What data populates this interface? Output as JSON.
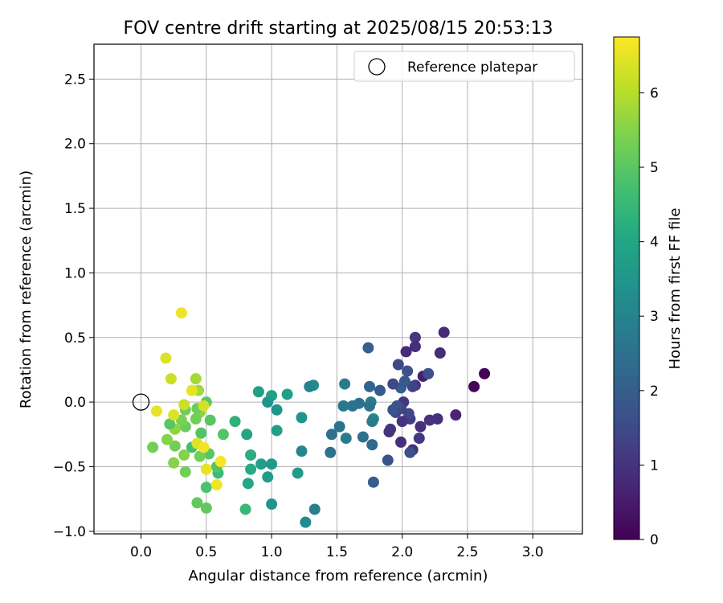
{
  "chart_data": {
    "type": "scatter",
    "title": "FOV centre drift starting at 2025/08/15 20:53:13",
    "xlabel": "Angular distance from reference (arcmin)",
    "ylabel": "Rotation from reference (arcmin)",
    "xlim": [
      -0.36,
      3.38
    ],
    "ylim": [
      -1.02,
      2.77
    ],
    "xticks": [
      0.0,
      0.5,
      1.0,
      1.5,
      2.0,
      2.5,
      3.0
    ],
    "xtick_labels": [
      "0.0",
      "0.5",
      "1.0",
      "1.5",
      "2.0",
      "2.5",
      "3.0"
    ],
    "yticks": [
      -1.0,
      -0.5,
      0.0,
      0.5,
      1.0,
      1.5,
      2.0,
      2.5
    ],
    "ytick_labels": [
      "−1.0",
      "−0.5",
      "0.0",
      "0.5",
      "1.0",
      "1.5",
      "2.0",
      "2.5"
    ],
    "grid": true,
    "colormap": "viridis",
    "colorbar": {
      "label": "Hours from first FF file",
      "range": [
        0,
        6.75
      ],
      "ticks": [
        0,
        1,
        2,
        3,
        4,
        5,
        6
      ],
      "tick_labels": [
        "0",
        "1",
        "2",
        "3",
        "4",
        "5",
        "6"
      ]
    },
    "legend": {
      "entries": [
        "Reference platepar"
      ],
      "position": "top-right"
    },
    "reference": {
      "x": 0.0,
      "y": 0.0
    },
    "points": [
      {
        "x": 2.63,
        "y": 0.22,
        "c": 0.05
      },
      {
        "x": 2.55,
        "y": 0.12,
        "c": 0.1
      },
      {
        "x": 2.41,
        "y": -0.1,
        "c": 0.7
      },
      {
        "x": 2.32,
        "y": 0.54,
        "c": 0.8
      },
      {
        "x": 2.29,
        "y": 0.38,
        "c": 0.85
      },
      {
        "x": 2.27,
        "y": -0.13,
        "c": 0.9
      },
      {
        "x": 2.21,
        "y": -0.14,
        "c": 1.0
      },
      {
        "x": 2.16,
        "y": 0.2,
        "c": 0.6
      },
      {
        "x": 2.14,
        "y": -0.19,
        "c": 0.9
      },
      {
        "x": 2.13,
        "y": -0.28,
        "c": 1.1
      },
      {
        "x": 2.1,
        "y": 0.5,
        "c": 1.1
      },
      {
        "x": 2.1,
        "y": 0.43,
        "c": 0.9
      },
      {
        "x": 2.03,
        "y": 0.39,
        "c": 0.8
      },
      {
        "x": 2.1,
        "y": 0.13,
        "c": 1.0
      },
      {
        "x": 2.08,
        "y": 0.12,
        "c": 1.3
      },
      {
        "x": 2.08,
        "y": -0.37,
        "c": 0.9
      },
      {
        "x": 2.06,
        "y": -0.39,
        "c": 1.6
      },
      {
        "x": 2.06,
        "y": -0.13,
        "c": 1.2
      },
      {
        "x": 2.05,
        "y": -0.09,
        "c": 1.4
      },
      {
        "x": 2.02,
        "y": 0.16,
        "c": 0.8
      },
      {
        "x": 2.01,
        "y": 0.0,
        "c": 1.1
      },
      {
        "x": 2.0,
        "y": -0.15,
        "c": 1.0
      },
      {
        "x": 1.99,
        "y": -0.05,
        "c": 1.3
      },
      {
        "x": 1.99,
        "y": 0.11,
        "c": 2.0
      },
      {
        "x": 1.99,
        "y": -0.31,
        "c": 0.9
      },
      {
        "x": 1.97,
        "y": 0.29,
        "c": 1.5
      },
      {
        "x": 1.96,
        "y": -0.03,
        "c": 1.8
      },
      {
        "x": 1.95,
        "y": -0.08,
        "c": 1.4
      },
      {
        "x": 1.93,
        "y": 0.14,
        "c": 1.5
      },
      {
        "x": 1.93,
        "y": -0.06,
        "c": 1.7
      },
      {
        "x": 1.91,
        "y": -0.21,
        "c": 1.1
      },
      {
        "x": 1.9,
        "y": -0.23,
        "c": 1.0
      },
      {
        "x": 1.89,
        "y": -0.45,
        "c": 1.7
      },
      {
        "x": 2.04,
        "y": 0.24,
        "c": 1.7
      },
      {
        "x": 2.02,
        "y": 0.16,
        "c": 1.9
      },
      {
        "x": 2.2,
        "y": 0.22,
        "c": 1.6
      },
      {
        "x": 1.83,
        "y": 0.09,
        "c": 1.9
      },
      {
        "x": 1.78,
        "y": -0.13,
        "c": 3.2
      },
      {
        "x": 1.78,
        "y": -0.62,
        "c": 2.0
      },
      {
        "x": 1.77,
        "y": -0.33,
        "c": 2.3
      },
      {
        "x": 1.77,
        "y": -0.15,
        "c": 2.8
      },
      {
        "x": 1.76,
        "y": 0.0,
        "c": 2.8
      },
      {
        "x": 1.75,
        "y": -0.03,
        "c": 2.5
      },
      {
        "x": 1.75,
        "y": 0.12,
        "c": 2.2
      },
      {
        "x": 1.74,
        "y": 0.42,
        "c": 2.1
      },
      {
        "x": 1.7,
        "y": -0.27,
        "c": 2.5
      },
      {
        "x": 1.67,
        "y": -0.01,
        "c": 2.5
      },
      {
        "x": 1.62,
        "y": -0.03,
        "c": 2.6
      },
      {
        "x": 1.57,
        "y": -0.28,
        "c": 2.8
      },
      {
        "x": 1.56,
        "y": 0.14,
        "c": 2.8
      },
      {
        "x": 1.55,
        "y": -0.03,
        "c": 2.7
      },
      {
        "x": 1.52,
        "y": -0.19,
        "c": 2.6
      },
      {
        "x": 1.46,
        "y": -0.25,
        "c": 2.5
      },
      {
        "x": 1.45,
        "y": -0.39,
        "c": 2.5
      },
      {
        "x": 1.33,
        "y": -0.83,
        "c": 2.9
      },
      {
        "x": 1.32,
        "y": 0.13,
        "c": 3.3
      },
      {
        "x": 1.29,
        "y": 0.12,
        "c": 3.0
      },
      {
        "x": 1.26,
        "y": -0.93,
        "c": 3.2
      },
      {
        "x": 1.23,
        "y": -0.38,
        "c": 3.1
      },
      {
        "x": 1.23,
        "y": -0.12,
        "c": 3.5
      },
      {
        "x": 1.2,
        "y": -0.55,
        "c": 3.7
      },
      {
        "x": 1.12,
        "y": 0.06,
        "c": 3.8
      },
      {
        "x": 1.04,
        "y": -0.22,
        "c": 3.8
      },
      {
        "x": 1.04,
        "y": -0.06,
        "c": 3.5
      },
      {
        "x": 1.0,
        "y": 0.05,
        "c": 3.8
      },
      {
        "x": 1.0,
        "y": -0.79,
        "c": 3.5
      },
      {
        "x": 1.0,
        "y": -0.48,
        "c": 3.6
      },
      {
        "x": 0.97,
        "y": 0.0,
        "c": 3.5
      },
      {
        "x": 0.97,
        "y": -0.58,
        "c": 3.7
      },
      {
        "x": 0.92,
        "y": -0.48,
        "c": 3.8
      },
      {
        "x": 0.9,
        "y": 0.08,
        "c": 3.8
      },
      {
        "x": 0.84,
        "y": -0.52,
        "c": 4.1
      },
      {
        "x": 0.84,
        "y": -0.41,
        "c": 4.2
      },
      {
        "x": 0.82,
        "y": -0.63,
        "c": 4.0
      },
      {
        "x": 0.81,
        "y": -0.25,
        "c": 4.0
      },
      {
        "x": 0.8,
        "y": -0.83,
        "c": 4.5
      },
      {
        "x": 0.72,
        "y": -0.15,
        "c": 4.3
      },
      {
        "x": 0.63,
        "y": -0.25,
        "c": 4.9
      },
      {
        "x": 0.59,
        "y": -0.55,
        "c": 4.6
      },
      {
        "x": 0.58,
        "y": -0.5,
        "c": 4.9
      },
      {
        "x": 0.53,
        "y": -0.14,
        "c": 5.0
      },
      {
        "x": 0.52,
        "y": -0.4,
        "c": 5.0
      },
      {
        "x": 0.5,
        "y": -0.66,
        "c": 4.8
      },
      {
        "x": 0.5,
        "y": -0.82,
        "c": 5.1
      },
      {
        "x": 0.5,
        "y": 0.0,
        "c": 5.0
      },
      {
        "x": 0.46,
        "y": -0.24,
        "c": 4.9
      },
      {
        "x": 0.45,
        "y": -0.42,
        "c": 5.3
      },
      {
        "x": 0.45,
        "y": -0.08,
        "c": 5.6
      },
      {
        "x": 0.44,
        "y": 0.09,
        "c": 5.8
      },
      {
        "x": 0.43,
        "y": -0.05,
        "c": 5.2
      },
      {
        "x": 0.43,
        "y": -0.78,
        "c": 5.1
      },
      {
        "x": 0.42,
        "y": -0.13,
        "c": 5.3
      },
      {
        "x": 0.42,
        "y": 0.18,
        "c": 5.8
      },
      {
        "x": 0.39,
        "y": -0.35,
        "c": 4.7
      },
      {
        "x": 0.34,
        "y": -0.19,
        "c": 5.2
      },
      {
        "x": 0.34,
        "y": -0.06,
        "c": 5.3
      },
      {
        "x": 0.34,
        "y": -0.54,
        "c": 5.3
      },
      {
        "x": 0.33,
        "y": -0.41,
        "c": 5.5
      },
      {
        "x": 0.31,
        "y": -0.14,
        "c": 5.4
      },
      {
        "x": 0.26,
        "y": -0.34,
        "c": 5.3
      },
      {
        "x": 0.25,
        "y": -0.47,
        "c": 5.5
      },
      {
        "x": 0.26,
        "y": -0.21,
        "c": 5.6
      },
      {
        "x": 0.22,
        "y": -0.17,
        "c": 5.0
      },
      {
        "x": 0.2,
        "y": -0.29,
        "c": 5.5
      },
      {
        "x": 0.09,
        "y": -0.35,
        "c": 5.3
      },
      {
        "x": 0.23,
        "y": 0.18,
        "c": 6.2
      },
      {
        "x": 0.19,
        "y": 0.34,
        "c": 6.4
      },
      {
        "x": 0.31,
        "y": 0.69,
        "c": 6.6
      },
      {
        "x": 0.12,
        "y": -0.07,
        "c": 6.5
      },
      {
        "x": 0.25,
        "y": -0.1,
        "c": 6.4
      },
      {
        "x": 0.39,
        "y": 0.09,
        "c": 6.5
      },
      {
        "x": 0.43,
        "y": -0.32,
        "c": 6.4
      },
      {
        "x": 0.48,
        "y": -0.35,
        "c": 6.6
      },
      {
        "x": 0.48,
        "y": -0.03,
        "c": 6.3
      },
      {
        "x": 0.5,
        "y": -0.52,
        "c": 6.5
      },
      {
        "x": 0.58,
        "y": -0.64,
        "c": 6.6
      },
      {
        "x": 0.61,
        "y": -0.46,
        "c": 6.7
      },
      {
        "x": 0.33,
        "y": -0.02,
        "c": 6.2
      }
    ]
  }
}
